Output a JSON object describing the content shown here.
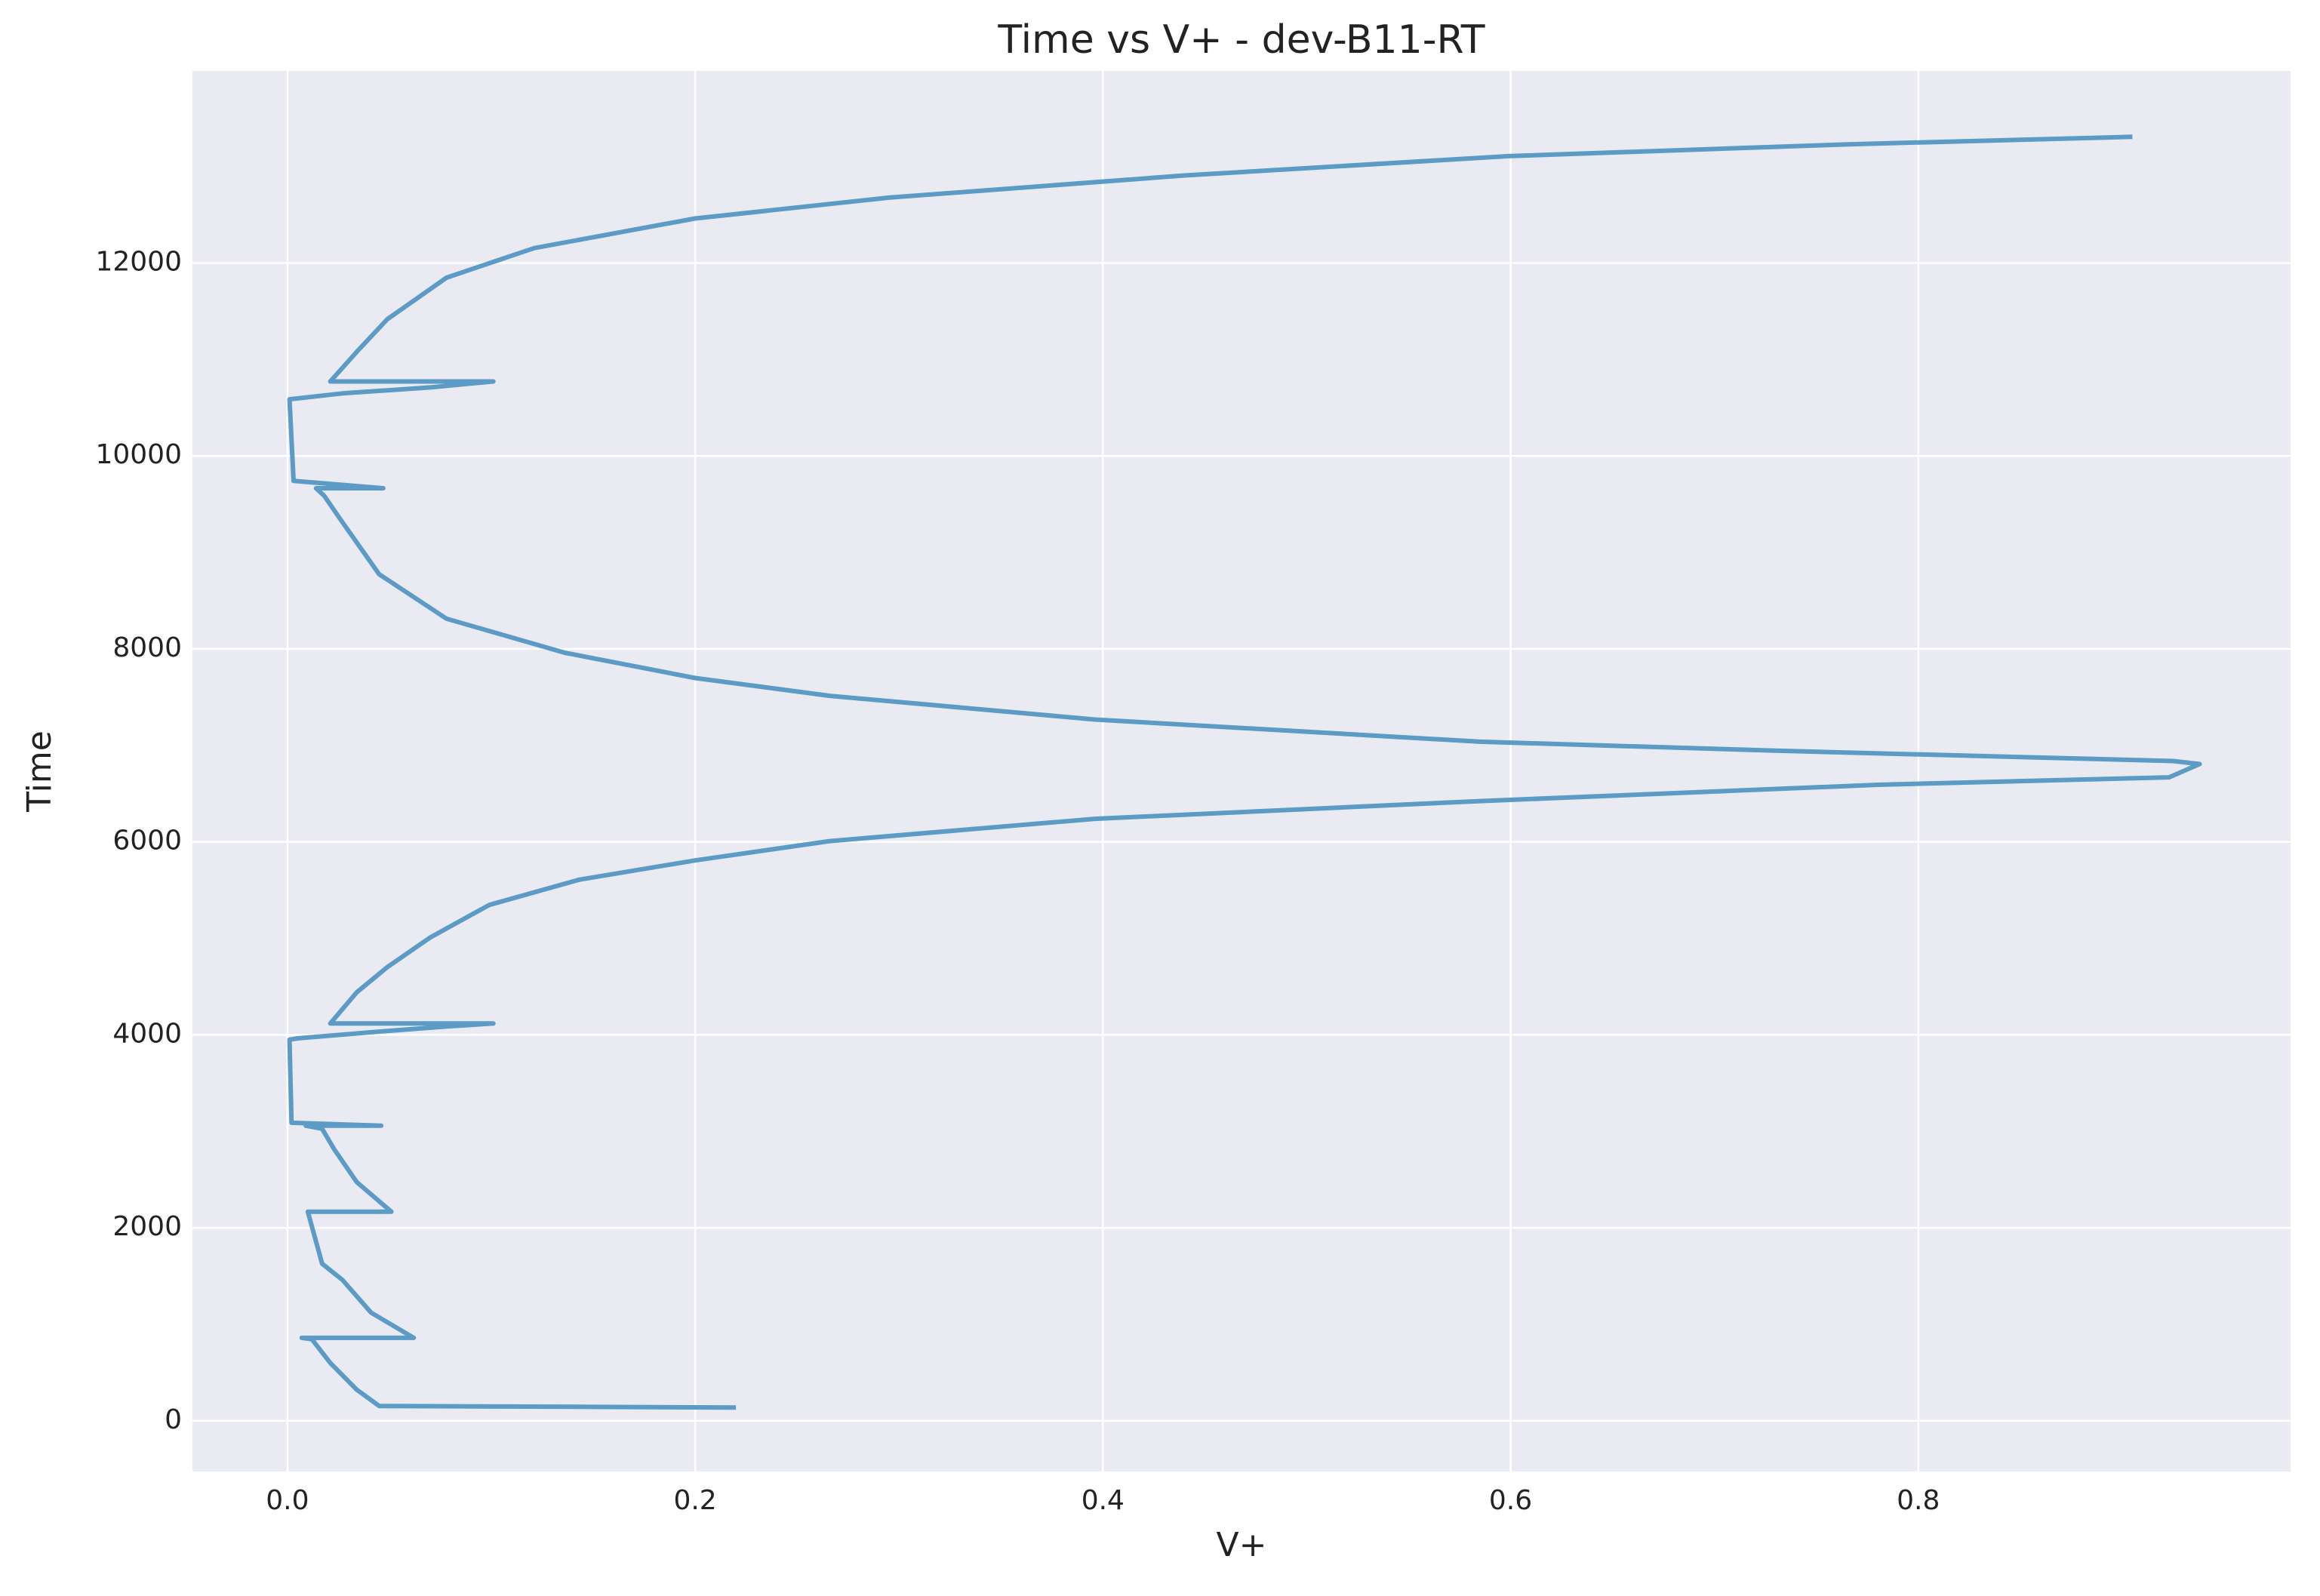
{
  "chart_data": {
    "type": "line",
    "title": "Time vs V+ - dev-B11-RT",
    "x_label": "V+",
    "y_label": "Time",
    "color": "#5b9bc6",
    "grid": true,
    "background": "#eaeaf2",
    "x": [
      0.22,
      0.045,
      0.034,
      0.021,
      0.012,
      0.007,
      0.062,
      0.041,
      0.027,
      0.017,
      0.01,
      0.051,
      0.034,
      0.023,
      0.017,
      0.009,
      0.046,
      0.002,
      0.001,
      0.005,
      0.049,
      0.078,
      0.101,
      0.021,
      0.034,
      0.049,
      0.07,
      0.099,
      0.143,
      0.2,
      0.266,
      0.396,
      0.585,
      0.78,
      0.923,
      0.938,
      0.925,
      0.73,
      0.585,
      0.396,
      0.266,
      0.2,
      0.136,
      0.078,
      0.045,
      0.027,
      0.018,
      0.014,
      0.047,
      0.003,
      0.001,
      0.027,
      0.07,
      0.101,
      0.021,
      0.034,
      0.049,
      0.078,
      0.121,
      0.2,
      0.295,
      0.44,
      0.599,
      0.766,
      0.905
    ],
    "values": [
      138,
      154,
      323,
      600,
      845,
      860,
      860,
      1122,
      1460,
      1629,
      2167,
      2167,
      2474,
      2812,
      3027,
      3058,
      3058,
      3089,
      3950,
      3964,
      4041,
      4087,
      4118,
      4118,
      4441,
      4702,
      5009,
      5347,
      5608,
      5808,
      6008,
      6239,
      6423,
      6592,
      6669,
      6807,
      6838,
      6945,
      7038,
      7268,
      7514,
      7698,
      7960,
      8313,
      8774,
      9312,
      9588,
      9665,
      9665,
      9742,
      10587,
      10648,
      10710,
      10772,
      10772,
      11079,
      11417,
      11847,
      12154,
      12461,
      12677,
      12907,
      13107,
      13230,
      13307
    ],
    "xlim": [
      -0.0466,
      0.9826
    ],
    "xticks": [
      {
        "value": 0,
        "label": "0.0"
      },
      0.2,
      0.4,
      0.6,
      0.8
    ],
    "ylim": [
      -525,
      13990
    ],
    "yticks": [
      0,
      2000,
      4000,
      6000,
      8000,
      10000,
      12000
    ]
  }
}
